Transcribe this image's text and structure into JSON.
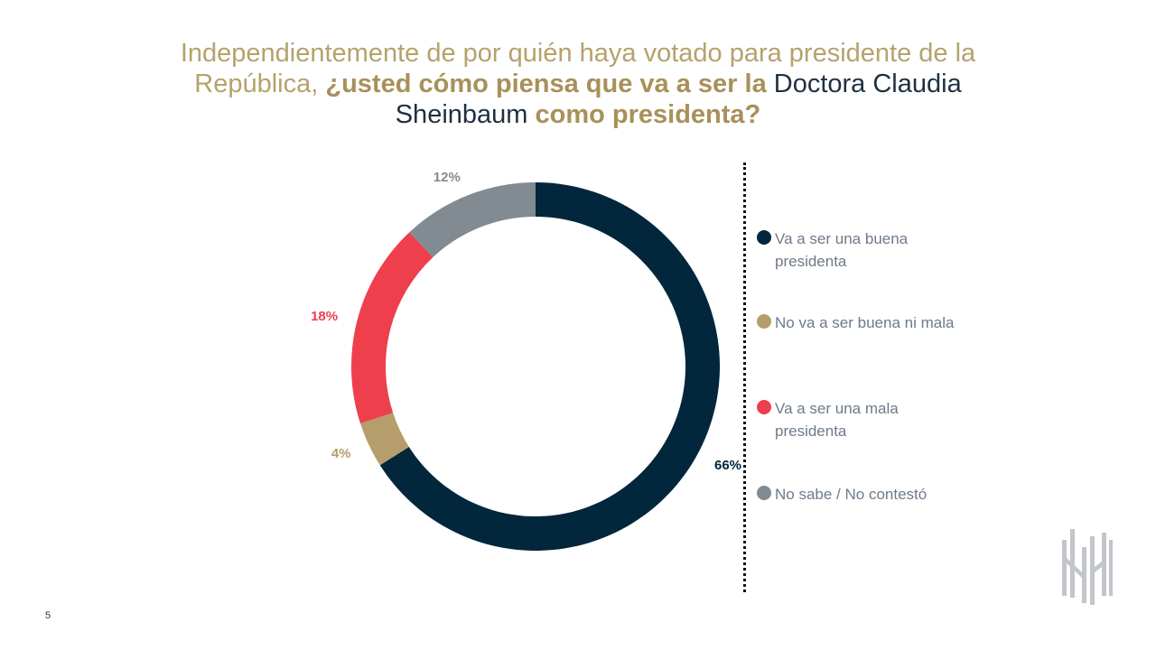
{
  "title": {
    "part1": "Independientemente de por quién haya votado para presidente de la República, ",
    "part2": "¿usted cómo piensa que va a ser la ",
    "part3": "Doctora Claudia Sheinbaum",
    "part4": " como presidenta?"
  },
  "chart_data": {
    "type": "pie",
    "donut": true,
    "title": "",
    "categories": [
      "Va a ser una buena presidenta",
      "No va a ser buena ni mala",
      "Va a ser una mala presidenta",
      "No sabe / No contestó"
    ],
    "values": [
      66,
      4,
      18,
      12
    ],
    "labels": [
      "66%",
      "4%",
      "18%",
      "12%"
    ],
    "colors": [
      "#02263b",
      "#b59e6b",
      "#ee3f4d",
      "#828a92"
    ],
    "label_colors": [
      "#02263b",
      "#b59e6b",
      "#ee3f4d",
      "#828a92"
    ],
    "legend_placement": "right"
  },
  "legend": {
    "items": [
      {
        "label": "Va a ser una buena presidenta",
        "color": "#02263b"
      },
      {
        "label": "No va a ser buena ni mala",
        "color": "#b59e6b"
      },
      {
        "label": "Va a ser una mala presidenta",
        "color": "#ee3f4d"
      },
      {
        "label": "No sabe / No contestó",
        "color": "#828a92"
      }
    ]
  },
  "page_number": "5",
  "logo_icon": "brand-logo-icon"
}
